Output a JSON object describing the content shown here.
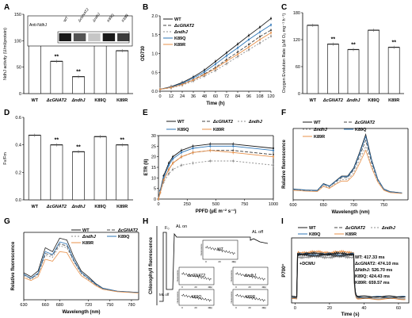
{
  "colors": {
    "wt": "#1a1a1a",
    "cg": "#444444",
    "ndhj": "#8c8c8c",
    "k89q": "#2e75b6",
    "k89r": "#e8914a",
    "bar": "#ffffff",
    "stroke": "#222222"
  },
  "chart_data": [
    {
      "panel": "A",
      "type": "bar",
      "ylabel": "NdhJ activity (U/ml/protein)",
      "categories": [
        "WT",
        "ΔcGNAT2",
        "ΔndhJ",
        "K89Q",
        "K89R"
      ],
      "values": [
        100,
        61,
        32,
        96,
        81
      ],
      "ylim": [
        0,
        150
      ],
      "annotations": [
        "",
        "**",
        "**",
        "",
        "**"
      ],
      "blot": {
        "label": "Anti-NdhJ",
        "lanes": [
          "WT",
          "ΔcGNAT2",
          "ΔndhJ",
          "K89Q",
          "K89R"
        ]
      }
    },
    {
      "panel": "B",
      "type": "line",
      "ylabel": "OD730",
      "xlabel": "Time (h)",
      "xticks": [
        0,
        12,
        24,
        36,
        48,
        60,
        72,
        84,
        96,
        108,
        120
      ],
      "ylim": [
        0,
        2.0
      ],
      "yticks": [
        "0.0",
        "0.5",
        "1.0",
        "1.5",
        "2.0"
      ],
      "x": [
        0,
        12,
        24,
        36,
        48,
        60,
        72,
        84,
        96,
        108,
        120
      ],
      "series": [
        {
          "name": "WT",
          "values": [
            0.05,
            0.12,
            0.23,
            0.38,
            0.56,
            0.79,
            1.02,
            1.25,
            1.48,
            1.7,
            1.93
          ]
        },
        {
          "name": "ΔcGNAT2",
          "values": [
            0.05,
            0.1,
            0.19,
            0.31,
            0.46,
            0.63,
            0.84,
            1.04,
            1.24,
            1.45,
            1.62
          ]
        },
        {
          "name": "ΔndhJ",
          "values": [
            0.05,
            0.09,
            0.16,
            0.27,
            0.4,
            0.55,
            0.73,
            0.92,
            1.1,
            1.28,
            1.46
          ]
        },
        {
          "name": "K89Q",
          "values": [
            0.05,
            0.11,
            0.21,
            0.35,
            0.51,
            0.72,
            0.94,
            1.15,
            1.37,
            1.57,
            1.76
          ]
        },
        {
          "name": "K89R",
          "values": [
            0.05,
            0.1,
            0.18,
            0.3,
            0.44,
            0.6,
            0.8,
            0.98,
            1.17,
            1.37,
            1.55
          ]
        }
      ]
    },
    {
      "panel": "C",
      "type": "bar",
      "ylabel": "Oxygen Evolution Rate (µM O₂ mg⁻¹ h⁻¹)",
      "categories": [
        "WT",
        "ΔcGNAT2",
        "ΔndhJ",
        "K89Q",
        "K89R"
      ],
      "values": [
        152,
        110,
        98,
        141,
        103
      ],
      "ylim": [
        0,
        180
      ],
      "annotations": [
        "",
        "**",
        "**",
        "",
        "**"
      ]
    },
    {
      "panel": "D",
      "type": "bar",
      "ylabel": "Fv/Fm",
      "categories": [
        "WT",
        "ΔcGNAT2",
        "ΔndhJ",
        "K89Q",
        "K89R"
      ],
      "values": [
        0.47,
        0.4,
        0.35,
        0.46,
        0.4
      ],
      "ylim": [
        0,
        0.6
      ],
      "annotations": [
        "",
        "**",
        "**",
        "",
        "**"
      ]
    },
    {
      "panel": "E",
      "type": "line",
      "ylabel": "ETR (II)",
      "xlabel": "PPFD (µE m⁻² s⁻¹)",
      "xticks": [
        0,
        250,
        500,
        750,
        1000
      ],
      "ylim": [
        0,
        30
      ],
      "yticks": [
        "0",
        "5",
        "10",
        "15",
        "20",
        "25",
        "30"
      ],
      "x": [
        0,
        15,
        45,
        90,
        125,
        200,
        300,
        450,
        650,
        1000
      ],
      "series": [
        {
          "name": "WT",
          "values": [
            0,
            4,
            11,
            17,
            20,
            23,
            25,
            26,
            26,
            24
          ]
        },
        {
          "name": "ΔcGNAT2",
          "values": [
            0,
            3,
            9,
            14,
            17,
            20,
            22,
            23,
            23,
            21
          ]
        },
        {
          "name": "ΔndhJ",
          "values": [
            0,
            3,
            8,
            12,
            14,
            16,
            17,
            18,
            18,
            16
          ]
        },
        {
          "name": "K89Q",
          "values": [
            0,
            4,
            10,
            16,
            19,
            22,
            24,
            25,
            25,
            23
          ]
        },
        {
          "name": "K89R",
          "values": [
            0,
            3,
            9,
            14,
            17,
            20,
            22,
            23,
            22,
            20
          ]
        }
      ]
    },
    {
      "panel": "F",
      "type": "line",
      "ylabel": "Relative fluorescence",
      "xlabel": "Wavelength (nm)",
      "xticks": [
        600,
        650,
        700,
        750
      ],
      "x": [
        600,
        620,
        640,
        650,
        660,
        670,
        680,
        690,
        700,
        710,
        720,
        730,
        740,
        750,
        760,
        780
      ],
      "series": [
        {
          "name": "WT",
          "values": [
            0.55,
            0.5,
            0.48,
            0.82,
            0.7,
            0.95,
            1.2,
            1.2,
            1.6,
            2.4,
            3.3,
            2.0,
            1.05,
            0.55,
            0.42,
            0.35
          ]
        },
        {
          "name": "ΔcGNAT2",
          "values": [
            0.53,
            0.48,
            0.46,
            0.78,
            0.67,
            0.9,
            1.12,
            1.12,
            1.5,
            2.2,
            3.0,
            1.85,
            1.0,
            0.52,
            0.4,
            0.34
          ]
        },
        {
          "name": "ΔndhJ",
          "values": [
            0.5,
            0.46,
            0.44,
            0.72,
            0.62,
            0.83,
            1.02,
            1.02,
            1.35,
            2.0,
            2.7,
            1.7,
            0.93,
            0.5,
            0.38,
            0.33
          ]
        },
        {
          "name": "K89Q",
          "values": [
            0.54,
            0.49,
            0.47,
            0.8,
            0.69,
            0.93,
            1.17,
            1.17,
            1.56,
            2.33,
            3.2,
            1.95,
            1.03,
            0.54,
            0.41,
            0.35
          ]
        },
        {
          "name": "K89R",
          "values": [
            0.48,
            0.44,
            0.42,
            0.68,
            0.58,
            0.78,
            0.95,
            0.95,
            1.25,
            1.85,
            2.5,
            1.6,
            0.9,
            0.48,
            0.37,
            0.32
          ]
        }
      ]
    },
    {
      "panel": "G",
      "type": "line",
      "ylabel": "Relative fluorescence",
      "xlabel": "Wavelength (nm)",
      "xticks": [
        630,
        660,
        680,
        720,
        750,
        780
      ],
      "xlim": [
        630,
        790
      ],
      "x": [
        630,
        640,
        650,
        660,
        670,
        680,
        690,
        700,
        710,
        720,
        730,
        740,
        760,
        790
      ],
      "series": [
        {
          "name": "WT",
          "values": [
            1.4,
            1.2,
            1.5,
            2.7,
            2.5,
            3.2,
            3.1,
            2.2,
            1.5,
            1.2,
            0.85,
            0.6,
            0.45,
            0.38
          ]
        },
        {
          "name": "ΔcGNAT2",
          "values": [
            1.3,
            1.1,
            1.35,
            2.4,
            2.3,
            2.9,
            2.8,
            2.0,
            1.4,
            1.1,
            0.8,
            0.58,
            0.44,
            0.37
          ]
        },
        {
          "name": "ΔndhJ",
          "values": [
            1.25,
            1.05,
            1.3,
            2.3,
            2.2,
            2.8,
            2.7,
            1.95,
            1.35,
            1.05,
            0.78,
            0.56,
            0.43,
            0.36
          ]
        },
        {
          "name": "K89Q",
          "values": [
            1.32,
            1.12,
            1.38,
            2.5,
            2.35,
            3.0,
            2.9,
            2.05,
            1.42,
            1.12,
            0.82,
            0.59,
            0.44,
            0.37
          ]
        },
        {
          "name": "K89R",
          "values": [
            1.15,
            1.0,
            1.2,
            2.1,
            2.0,
            2.5,
            2.45,
            1.8,
            1.25,
            1.0,
            0.74,
            0.54,
            0.42,
            0.35
          ]
        }
      ]
    },
    {
      "panel": "H",
      "type": "line",
      "ylabel": "Chlorophyll fluorescence",
      "labels": {
        "fo": "F₀",
        "al_on": "AL on",
        "al_off": "AL off",
        "ml_off": "ML off"
      },
      "insets": [
        {
          "name": "WT",
          "xlabel": "(s)"
        },
        {
          "name": "ΔcGNAT2",
          "xlabel": "(s)"
        },
        {
          "name": "ΔndhJ",
          "xlabel": "(s)"
        },
        {
          "name": "K89Q",
          "xlabel": "(s)"
        },
        {
          "name": "K89R",
          "xlabel": "(s)"
        }
      ],
      "inset_ylabel": "Fluorescence",
      "inset_xticks": [
        "0",
        "20",
        "40"
      ]
    },
    {
      "panel": "I",
      "type": "line",
      "ylabel": "P700⁺",
      "xlabel": "Time (s)",
      "xticks": [
        0,
        20,
        40,
        60
      ],
      "annotation": "+DCMU",
      "halftimes": [
        "WT: 417.33 ms",
        "ΔcGNAT2: 474.10 ms",
        "ΔNdhJ: 526.70 ms",
        "K89Q: 424.43 ms",
        "K89R: 659.57 ms"
      ],
      "series": [
        {
          "name": "WT"
        },
        {
          "name": "ΔcGNAT2"
        },
        {
          "name": "ΔndhJ"
        },
        {
          "name": "K89Q"
        },
        {
          "name": "K89R"
        }
      ]
    }
  ],
  "panel_labels": [
    "A",
    "B",
    "C",
    "D",
    "E",
    "F",
    "G",
    "H",
    "I"
  ]
}
